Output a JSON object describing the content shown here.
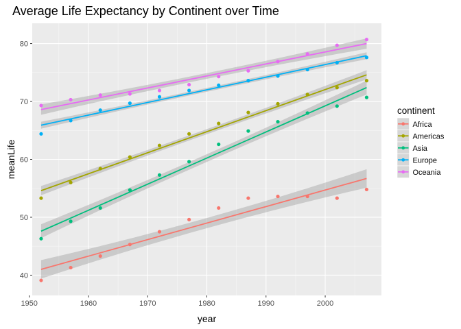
{
  "chart_data": {
    "type": "scatter",
    "title": "Average Life Expectancy by Continent over Time",
    "xlabel": "year",
    "ylabel": "meanLife",
    "xlim": [
      1950.5,
      2009.5
    ],
    "ylim": [
      36.5,
      83.5
    ],
    "x_ticks": [
      1950,
      1960,
      1970,
      1980,
      1990,
      2000
    ],
    "y_ticks": [
      40,
      50,
      60,
      70,
      80
    ],
    "grid": true,
    "trend": "linear fit with confidence band",
    "legend": {
      "title": "continent",
      "placement": "right"
    },
    "x": [
      1952,
      1957,
      1962,
      1967,
      1972,
      1977,
      1982,
      1987,
      1992,
      1997,
      2002,
      2007
    ],
    "series": [
      {
        "name": "Africa",
        "color": "#F8766D",
        "values": [
          39.1,
          41.3,
          43.3,
          45.3,
          47.5,
          49.6,
          51.6,
          53.3,
          53.6,
          53.6,
          53.3,
          54.8
        ],
        "fit": [
          41.0,
          56.7
        ],
        "band": 1.6
      },
      {
        "name": "Americas",
        "color": "#A3A500",
        "values": [
          53.3,
          56.0,
          58.4,
          60.4,
          62.4,
          64.4,
          66.2,
          68.1,
          69.6,
          71.2,
          72.4,
          73.6
        ],
        "fit": [
          54.6,
          74.6
        ],
        "band": 0.8
      },
      {
        "name": "Asia",
        "color": "#00BF7D",
        "values": [
          46.3,
          49.3,
          51.6,
          54.7,
          57.3,
          59.6,
          62.6,
          64.9,
          66.5,
          68.0,
          69.2,
          70.7
        ],
        "fit": [
          47.6,
          72.4
        ],
        "band": 1.2
      },
      {
        "name": "Europe",
        "color": "#00B0F6",
        "values": [
          64.4,
          66.7,
          68.5,
          69.7,
          70.8,
          71.9,
          72.8,
          73.6,
          74.4,
          75.5,
          76.7,
          77.6
        ],
        "fit": [
          65.9,
          77.9
        ],
        "band": 0.6
      },
      {
        "name": "Oceania",
        "color": "#E76BF3",
        "values": [
          69.3,
          70.3,
          71.1,
          71.3,
          71.9,
          72.9,
          74.3,
          75.3,
          76.9,
          78.2,
          79.7,
          80.7
        ],
        "fit": [
          68.6,
          80.0
        ],
        "band": 0.9
      }
    ]
  }
}
